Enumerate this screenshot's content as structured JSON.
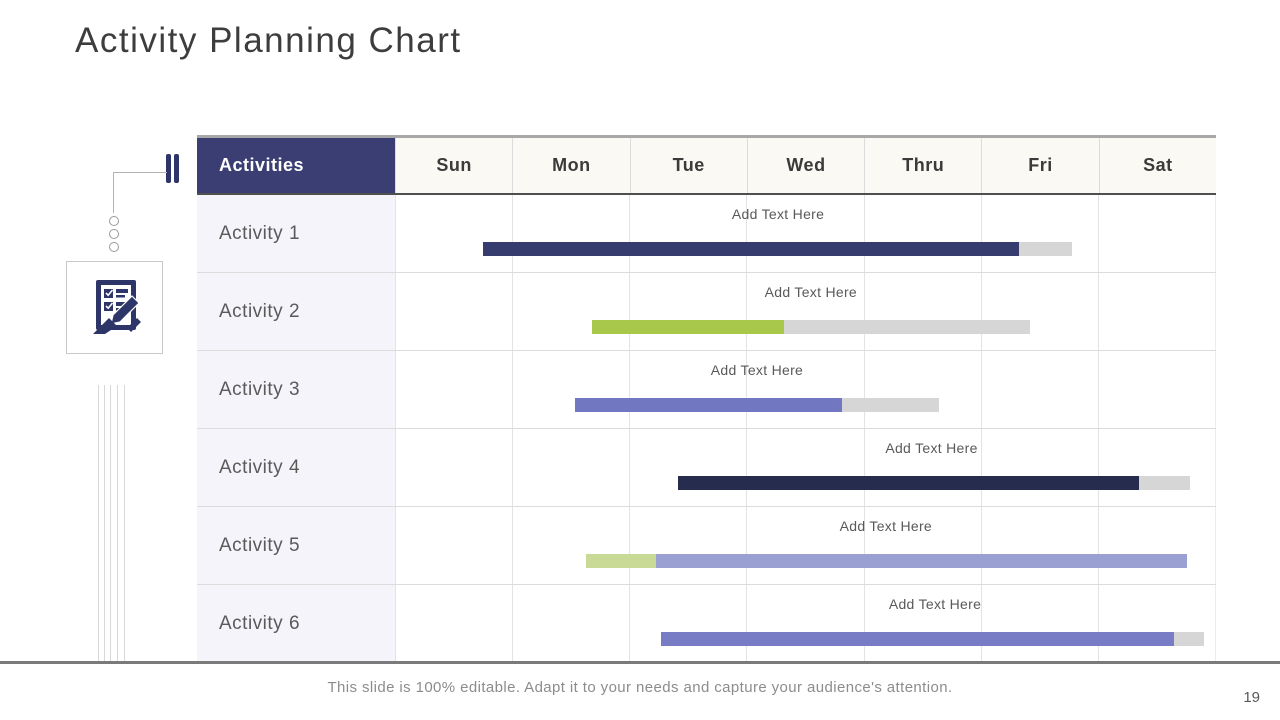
{
  "title": "Activity Planning Chart",
  "table": {
    "header_label": "Activities",
    "days": [
      "Sun",
      "Mon",
      "Tue",
      "Wed",
      "Thru",
      "Fri",
      "Sat"
    ]
  },
  "chart_data": {
    "type": "bar",
    "variant": "gantt",
    "x_categories": [
      "Sun",
      "Mon",
      "Tue",
      "Wed",
      "Thru",
      "Fri",
      "Sat"
    ],
    "xlim_days": [
      0,
      7
    ],
    "rows": [
      {
        "label": "Activity 1",
        "annotation": "Add Text Here",
        "annotation_center_day": 3.27,
        "segments": [
          {
            "color": "navy",
            "start_day": 0.75,
            "end_day": 5.33
          },
          {
            "color": "gray",
            "start_day": 5.33,
            "end_day": 5.78
          }
        ]
      },
      {
        "label": "Activity 2",
        "annotation": "Add Text Here",
        "annotation_center_day": 3.55,
        "segments": [
          {
            "color": "green",
            "start_day": 1.68,
            "end_day": 3.32
          },
          {
            "color": "gray",
            "start_day": 3.32,
            "end_day": 5.42
          }
        ]
      },
      {
        "label": "Activity 3",
        "annotation": "Add Text Here",
        "annotation_center_day": 3.09,
        "segments": [
          {
            "color": "purple",
            "start_day": 1.54,
            "end_day": 3.82
          },
          {
            "color": "gray",
            "start_day": 3.82,
            "end_day": 4.64
          }
        ]
      },
      {
        "label": "Activity 4",
        "annotation": "Add Text Here",
        "annotation_center_day": 4.58,
        "segments": [
          {
            "color": "dark_navy",
            "start_day": 2.42,
            "end_day": 6.35
          },
          {
            "color": "gray",
            "start_day": 6.35,
            "end_day": 6.79
          }
        ]
      },
      {
        "label": "Activity 5",
        "annotation": "Add Text Here",
        "annotation_center_day": 4.19,
        "segments": [
          {
            "color": "light_green",
            "start_day": 1.63,
            "end_day": 2.23
          },
          {
            "color": "light_purple",
            "start_day": 2.23,
            "end_day": 6.76
          }
        ]
      },
      {
        "label": "Activity 6",
        "annotation": "Add Text Here",
        "annotation_center_day": 4.61,
        "segments": [
          {
            "color": "medium_purple",
            "start_day": 2.27,
            "end_day": 6.65
          },
          {
            "color": "gray",
            "start_day": 6.65,
            "end_day": 6.91
          }
        ]
      }
    ]
  },
  "colors": {
    "navy": "#363d6e",
    "dark_navy": "#252c4e",
    "green": "#a7c84b",
    "light_green": "#c9d996",
    "purple": "#7277c1",
    "light_purple": "#9aa0d2",
    "medium_purple": "#777cc5",
    "gray": "#d6d6d6",
    "header_bg": "#3a3e73",
    "icon_navy": "#2e3568"
  },
  "icons": {
    "left_glyph": "checklist-pen-icon",
    "pause_marks": "pause-bars-icon"
  },
  "footer": {
    "note": "This slide is 100% editable. Adapt it to your needs and capture your audience's attention.",
    "page_number": "19"
  }
}
